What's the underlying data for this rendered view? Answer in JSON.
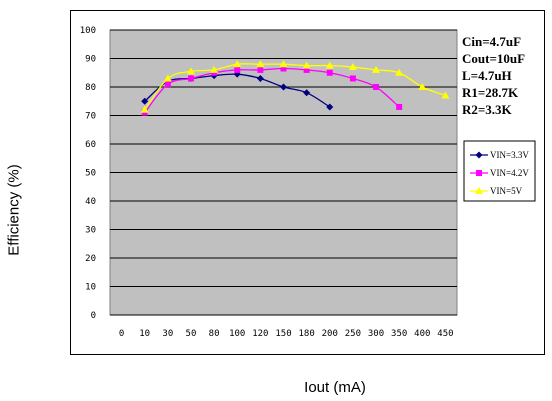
{
  "chart_data": {
    "type": "line",
    "title": "",
    "xlabel": "Iout (mA)",
    "ylabel": "Efficiency (%)",
    "ylim": [
      0,
      100
    ],
    "yticks": [
      "0",
      "10",
      "20",
      "30",
      "40",
      "50",
      "60",
      "70",
      "80",
      "90",
      "100"
    ],
    "categories": [
      "0",
      "10",
      "30",
      "50",
      "80",
      "100",
      "120",
      "150",
      "180",
      "200",
      "250",
      "300",
      "350",
      "400",
      "450"
    ],
    "grid": true,
    "legend_position": "right",
    "series": [
      {
        "name": "VIN=3.3V",
        "color": "#000080",
        "marker": "diamond",
        "values": [
          null,
          75,
          82,
          83,
          84,
          84.5,
          83,
          80,
          78,
          73,
          null,
          null,
          null,
          null,
          null
        ]
      },
      {
        "name": "VIN=4.2V",
        "color": "#ff00ff",
        "marker": "square",
        "values": [
          null,
          71,
          81,
          83,
          85,
          86,
          86,
          86.5,
          86,
          85,
          83,
          80,
          73,
          null,
          null
        ]
      },
      {
        "name": "VIN=5V",
        "color": "#ffff00",
        "marker": "triangle",
        "values": [
          null,
          72,
          83,
          85.5,
          86,
          88,
          88,
          88,
          87.5,
          87.5,
          87,
          86,
          85,
          80,
          77
        ]
      }
    ],
    "annotations": [
      "Cin=4.7uF",
      "Cout=10uF",
      "L=4.7uH",
      "R1=28.7K",
      "R2=3.3K"
    ]
  }
}
